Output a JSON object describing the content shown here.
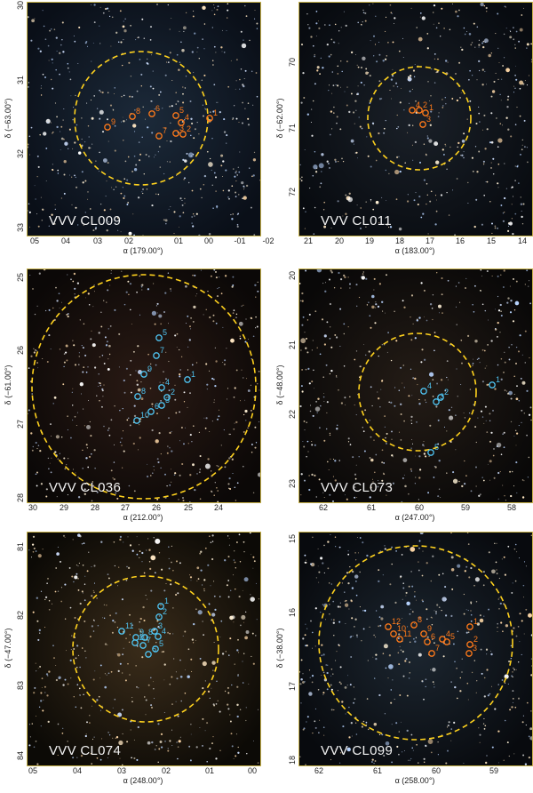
{
  "panels": [
    {
      "name": "VVV CL009",
      "xlabel": "α (179.00°)",
      "ylabel": "δ (−63.00°)",
      "xticks": [
        "05",
        "04",
        "03",
        "02",
        "01",
        "00",
        "-01",
        "-02"
      ],
      "yticks": [
        "30",
        "31",
        "32",
        "33"
      ],
      "marker_color": "#ff7a1a",
      "labels": [
        "1",
        "2",
        "3",
        "4",
        "5",
        "6",
        "7",
        "8",
        "9"
      ]
    },
    {
      "name": "VVV CL011",
      "xlabel": "α (183.00°)",
      "ylabel": "δ (−62.00°)",
      "xticks": [
        "21",
        "20",
        "19",
        "18",
        "17",
        "16",
        "15",
        "14"
      ],
      "yticks": [
        "70",
        "71",
        "72"
      ],
      "marker_color": "#ff7a1a",
      "labels": [
        "1",
        "2",
        "3",
        "4"
      ]
    },
    {
      "name": "VVV CL036",
      "xlabel": "α (212.00°)",
      "ylabel": "δ (−61.00°)",
      "xticks": [
        "30",
        "29",
        "28",
        "27",
        "26",
        "25",
        "24"
      ],
      "yticks": [
        "25",
        "26",
        "27",
        "28"
      ],
      "marker_color": "#4fc3f0",
      "labels": [
        "1",
        "2",
        "3",
        "4",
        "5",
        "6",
        "7",
        "8",
        "9",
        "10"
      ]
    },
    {
      "name": "VVV CL073",
      "xlabel": "α (247.00°)",
      "ylabel": "δ (−48.00°)",
      "xticks": [
        "62",
        "61",
        "60",
        "59",
        "58"
      ],
      "yticks": [
        "20",
        "21",
        "22",
        "23"
      ],
      "marker_color": "#4fc3f0",
      "labels": [
        "1",
        "2",
        "3",
        "4",
        "5"
      ]
    },
    {
      "name": "VVV CL074",
      "xlabel": "α (248.00°)",
      "ylabel": "δ (−47.00°)",
      "xticks": [
        "05",
        "04",
        "03",
        "02",
        "01",
        "00"
      ],
      "yticks": [
        "81",
        "82",
        "83",
        "84"
      ],
      "marker_color": "#4fc3f0",
      "labels": [
        "1",
        "2",
        "3",
        "4",
        "5",
        "6",
        "7",
        "8",
        "9",
        "10",
        "11"
      ]
    },
    {
      "name": "VVV CL099",
      "xlabel": "α (258.00°)",
      "ylabel": "δ (−38.00°)",
      "xticks": [
        "62",
        "61",
        "60",
        "59"
      ],
      "yticks": [
        "15",
        "16",
        "17",
        "18"
      ],
      "marker_color": "#ff7a1a",
      "labels": [
        "1",
        "2",
        "3",
        "4",
        "5",
        "6",
        "7",
        "8",
        "9",
        "10",
        "11",
        "12"
      ]
    }
  ],
  "colors": {
    "frame": "#c8b34a",
    "circle": "#ffd21e"
  }
}
